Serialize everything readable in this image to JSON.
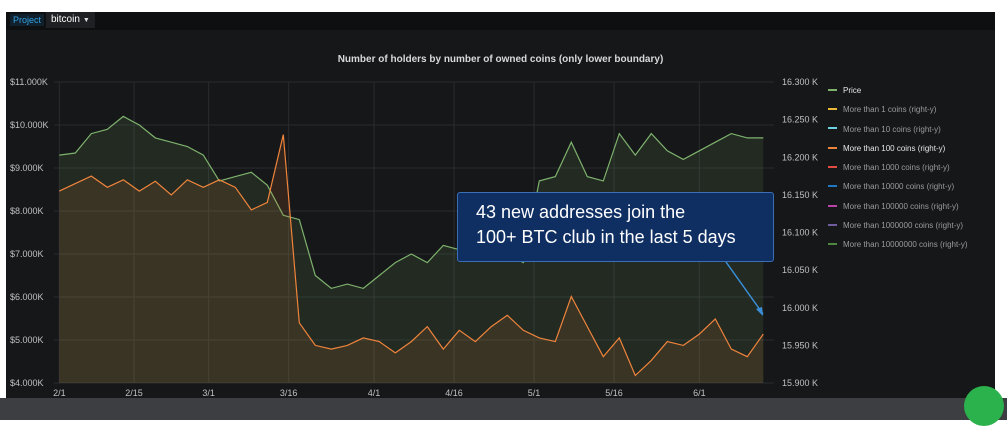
{
  "toolbar": {
    "project_label": "Project",
    "project_value": "bitcoin"
  },
  "callout": {
    "line1": "43 new addresses join the",
    "line2": "100+ BTC club in the last 5 days"
  },
  "colors": {
    "price": "#7eb26d",
    "more_than_1": "#eab839",
    "more_than_10": "#6ed0e0",
    "more_than_100": "#ef843c",
    "more_than_1000": "#e24d42",
    "more_than_10000": "#1f78c1",
    "more_than_100000": "#ba43a9",
    "more_than_1000000": "#705da0",
    "more_than_10000000": "#508642",
    "callout_bg": "#0f2f63",
    "arrow": "#3a8fd8"
  },
  "chart_data": {
    "type": "line",
    "title": "Number of holders by number of owned coins (only lower boundary)",
    "xlabel": "",
    "ylabel_left": "",
    "ylabel_right": "",
    "x_tick_labels": [
      "2/1",
      "2/15",
      "3/1",
      "3/16",
      "4/1",
      "4/16",
      "5/1",
      "5/16",
      "6/1"
    ],
    "y_left_tick_labels": [
      "$4.000K",
      "$5.000K",
      "$6.000K",
      "$7.000K",
      "$8.000K",
      "$9.000K",
      "$10.000K",
      "$11.000K"
    ],
    "y_right_tick_labels": [
      "15.900 K",
      "15.950 K",
      "16.000 K",
      "16.050 K",
      "16.100 K",
      "16.150 K",
      "16.200 K",
      "16.250 K",
      "16.300 K"
    ],
    "ylim_left": [
      4000,
      11000
    ],
    "ylim_right": [
      15900,
      16300
    ],
    "grid": true,
    "legend_position": "right",
    "x_days_note": "x values are days since Jan 31",
    "series": [
      {
        "name": "Price",
        "axis": "left",
        "color_key": "price",
        "x": [
          1,
          4,
          7,
          10,
          13,
          16,
          19,
          22,
          25,
          28,
          31,
          34,
          37,
          40,
          43,
          46,
          49,
          52,
          55,
          58,
          61,
          64,
          67,
          70,
          73,
          76,
          79,
          82,
          85,
          88,
          91,
          94,
          97,
          100,
          103,
          106,
          109,
          112,
          115,
          118,
          121,
          124,
          127,
          130,
          133
        ],
        "values": [
          9300,
          9350,
          9800,
          9900,
          10200,
          10000,
          9700,
          9600,
          9500,
          9300,
          8700,
          8800,
          8900,
          8600,
          7900,
          7800,
          6500,
          6200,
          6300,
          6200,
          6500,
          6800,
          7000,
          6800,
          7200,
          7100,
          6900,
          7300,
          7000,
          6800,
          8700,
          8800,
          9600,
          8800,
          8700,
          9800,
          9300,
          9800,
          9400,
          9200,
          9400,
          9600,
          9800,
          9700,
          9700
        ]
      },
      {
        "name": "More than 100 coins",
        "axis": "right",
        "color_key": "more_than_100",
        "x": [
          1,
          4,
          7,
          10,
          13,
          16,
          19,
          22,
          25,
          28,
          31,
          34,
          37,
          40,
          43,
          46,
          49,
          52,
          55,
          58,
          61,
          64,
          67,
          70,
          73,
          76,
          79,
          82,
          85,
          88,
          91,
          94,
          97,
          100,
          103,
          106,
          109,
          112,
          115,
          118,
          121,
          124,
          127,
          130,
          133
        ],
        "values": [
          16155,
          16165,
          16175,
          16160,
          16170,
          16155,
          16168,
          16150,
          16170,
          16160,
          16170,
          16160,
          16130,
          16140,
          16230,
          15980,
          15950,
          15945,
          15950,
          15960,
          15955,
          15940,
          15955,
          15975,
          15945,
          15970,
          15955,
          15975,
          15990,
          15970,
          15960,
          15955,
          16015,
          15975,
          15935,
          15960,
          15910,
          15930,
          15955,
          15950,
          15965,
          15985,
          15945,
          15935,
          15965
        ]
      }
    ],
    "legend": [
      "Price",
      "More than 1 coins  (right-y)",
      "More than 10 coins  (right-y)",
      "More than 100 coins  (right-y)",
      "More than 1000 coins  (right-y)",
      "More than 10000 coins  (right-y)",
      "More than 100000 coins  (right-y)",
      "More than 1000000 coins  (right-y)",
      "More than 10000000 coins  (right-y)"
    ]
  }
}
